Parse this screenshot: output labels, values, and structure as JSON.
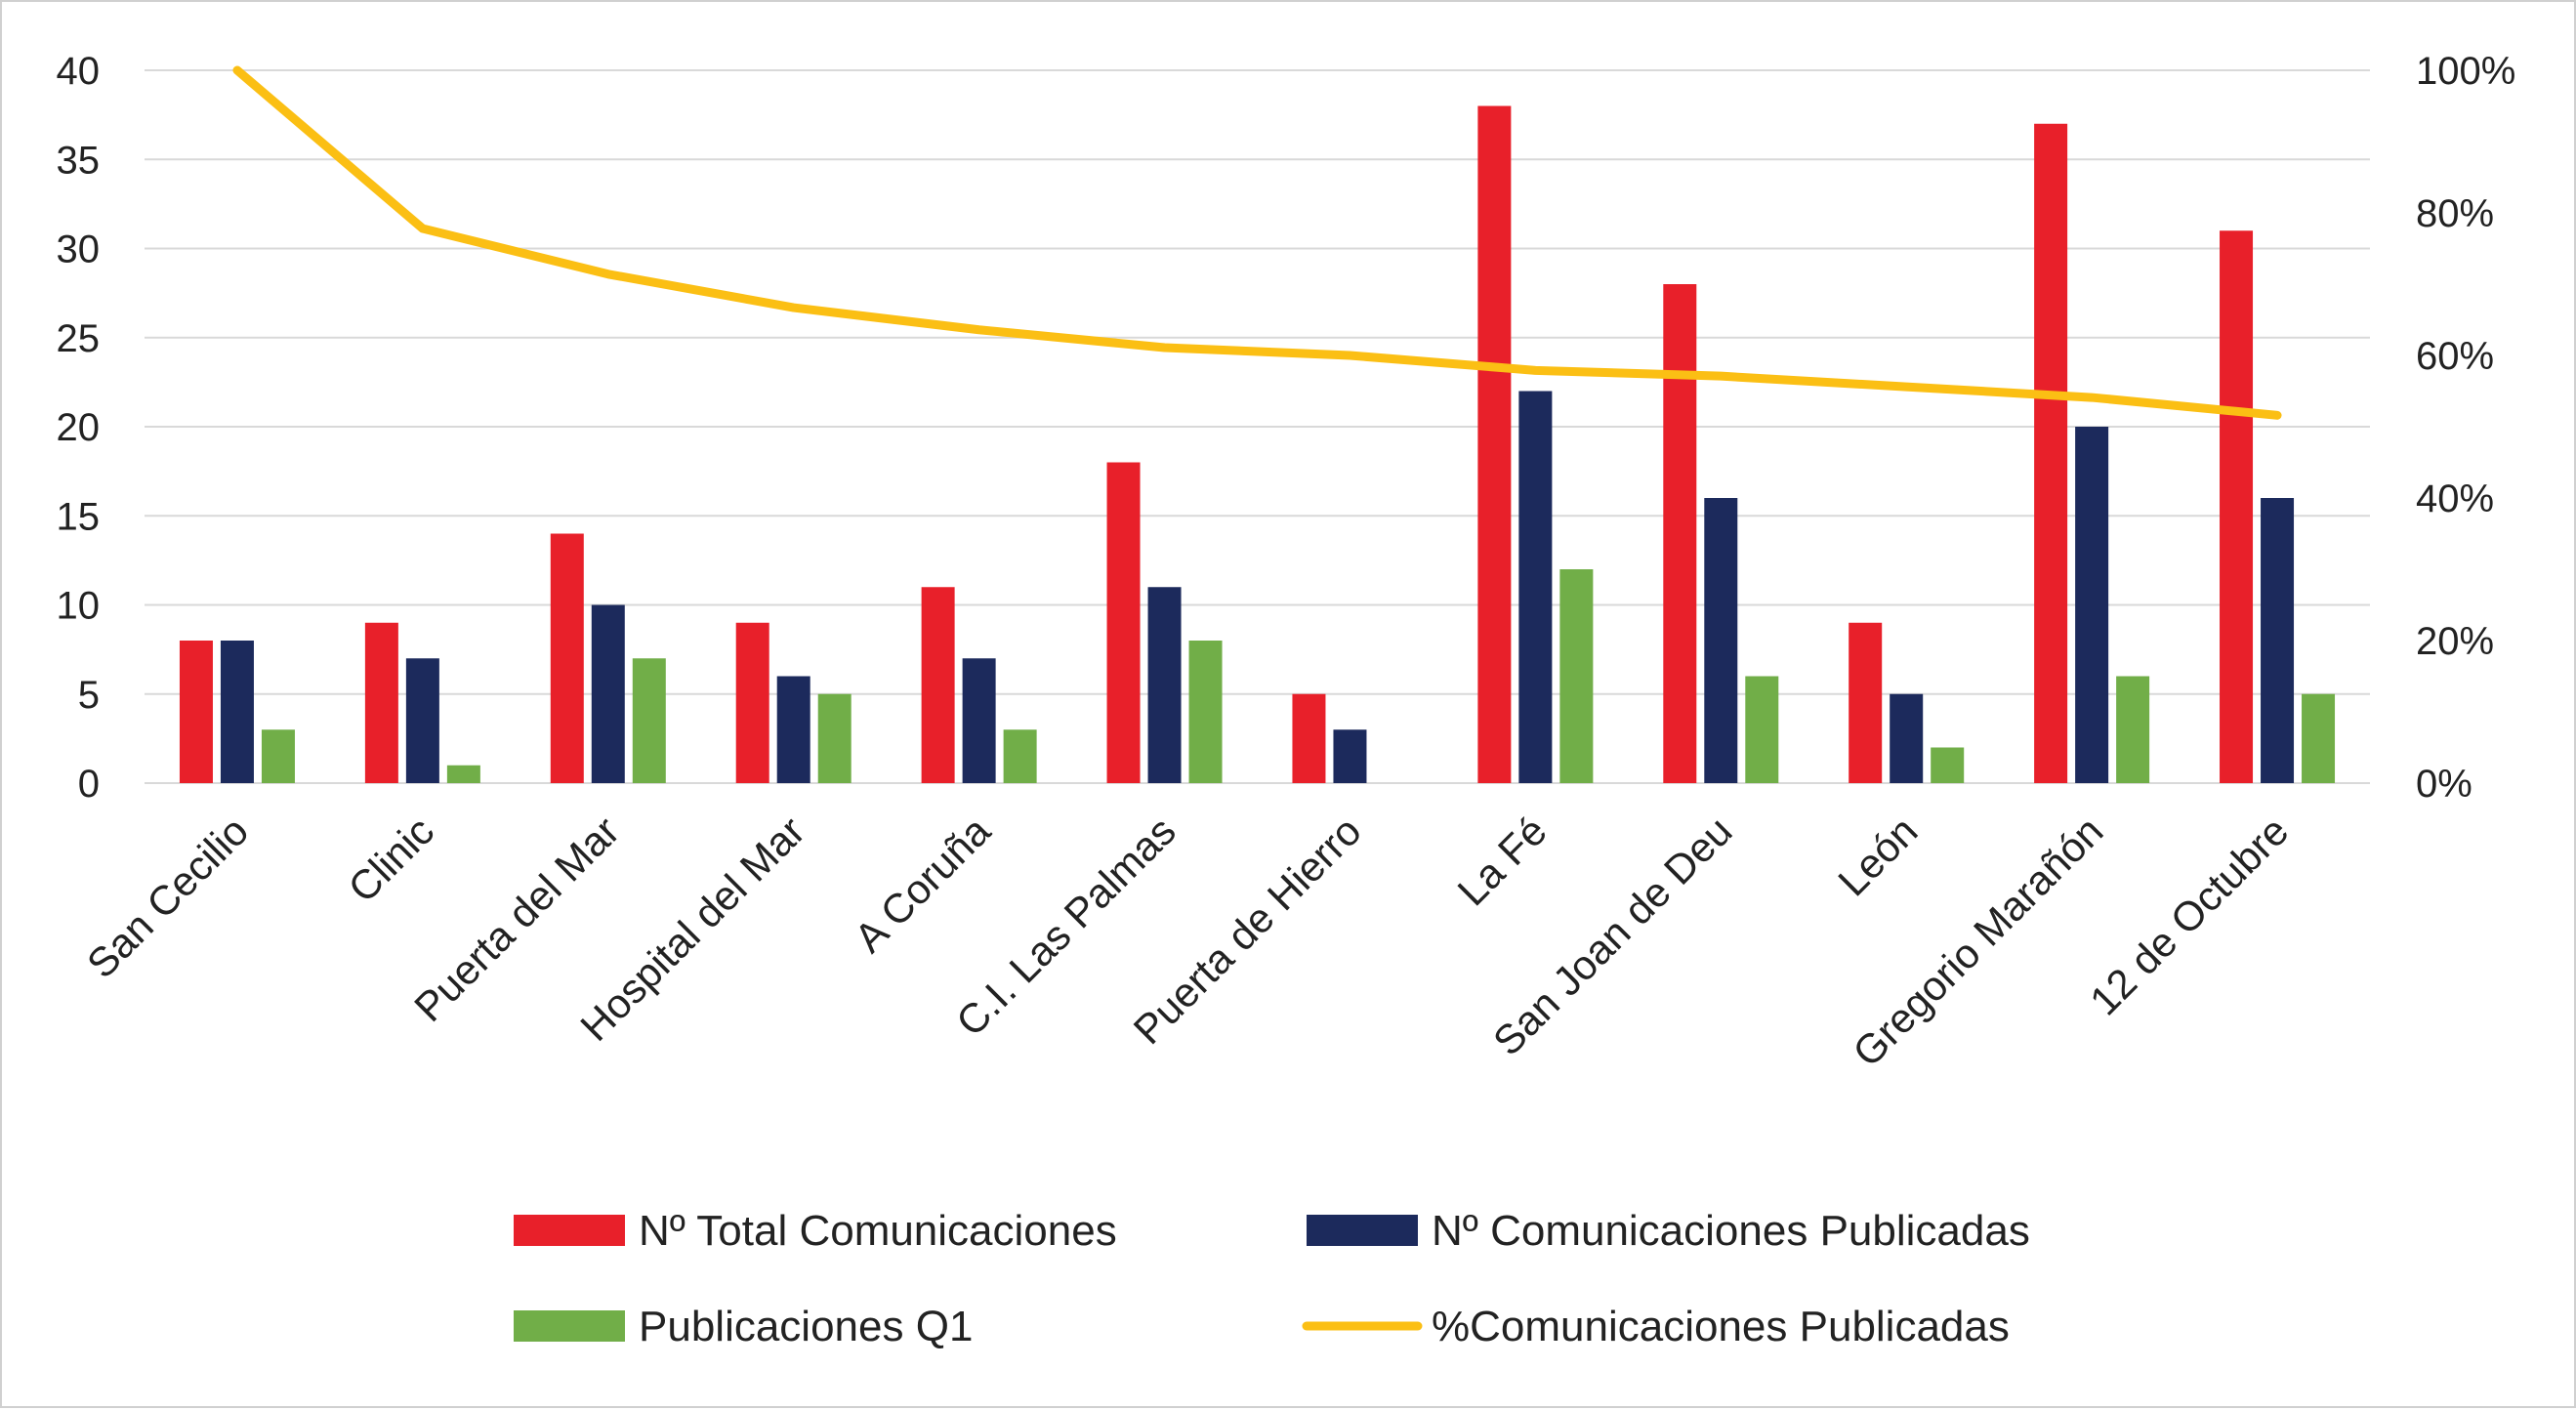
{
  "chart_data": {
    "type": "bar",
    "categories": [
      "San Cecilio",
      "Clinic",
      "Puerta del Mar",
      "Hospital del Mar",
      "A Coruña",
      "C.I. Las Palmas",
      "Puerta de Hierro",
      "La Fé",
      "San Joan de Deu",
      "León",
      "Gregorio Marañón",
      "12 de Octubre"
    ],
    "series": [
      {
        "name": "Nº Total Comunicaciones",
        "type": "bar",
        "axis": "left",
        "color": "#e8202a",
        "values": [
          8,
          9,
          14,
          9,
          11,
          18,
          5,
          38,
          28,
          9,
          37,
          31
        ]
      },
      {
        "name": "Nº Comunicaciones Publicadas",
        "type": "bar",
        "axis": "left",
        "color": "#1c2a5c",
        "values": [
          8,
          7,
          10,
          6,
          7,
          11,
          3,
          22,
          16,
          5,
          20,
          16
        ]
      },
      {
        "name": "Publicaciones Q1",
        "type": "bar",
        "axis": "left",
        "color": "#71ae48",
        "values": [
          3,
          1,
          7,
          5,
          3,
          8,
          0,
          12,
          6,
          2,
          6,
          5
        ]
      },
      {
        "name": "%Comunicaciones Publicadas",
        "type": "line",
        "axis": "right",
        "color": "#fbbf14",
        "values": [
          100,
          77.8,
          71.4,
          66.7,
          63.6,
          61.1,
          60,
          57.9,
          57.1,
          55.6,
          54.1,
          51.6
        ]
      }
    ],
    "y_left": {
      "ylim": [
        0,
        40
      ],
      "ticks": [
        "0",
        "5",
        "10",
        "15",
        "20",
        "25",
        "30",
        "35",
        "40"
      ]
    },
    "y_right": {
      "ylim": [
        0,
        100
      ],
      "ticks": [
        "0%",
        "20%",
        "40%",
        "60%",
        "80%",
        "100%"
      ]
    },
    "grid": true,
    "legend_position": "bottom"
  }
}
